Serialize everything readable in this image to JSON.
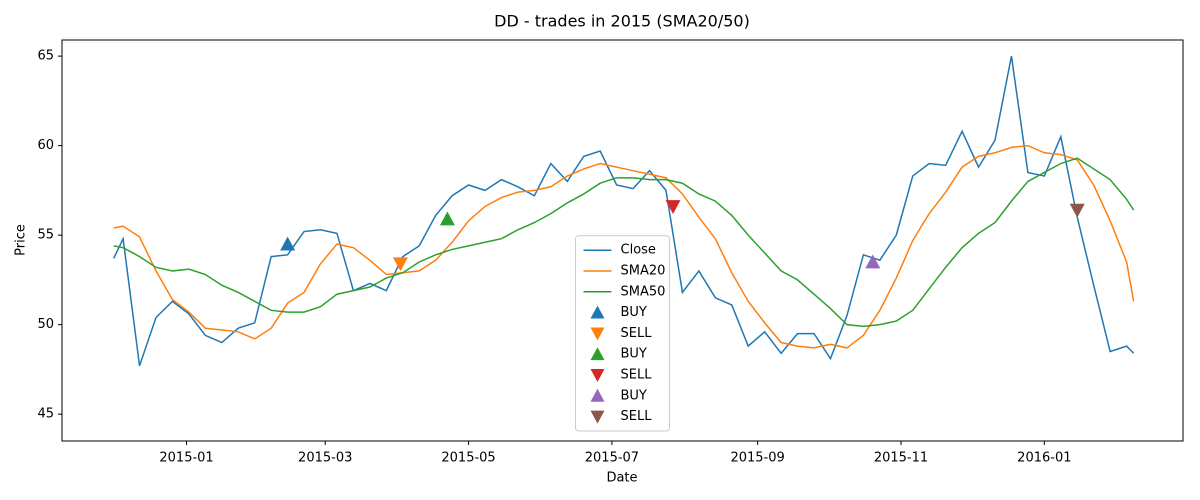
{
  "chart_data": {
    "type": "line",
    "title": "DD - trades in 2015 (SMA20/50)",
    "x_label": "Date",
    "y_label": "Price",
    "x": [
      "2014-12-01",
      "2014-12-05",
      "2014-12-12",
      "2014-12-19",
      "2014-12-26",
      "2015-01-02",
      "2015-01-09",
      "2015-01-16",
      "2015-01-23",
      "2015-01-30",
      "2015-02-06",
      "2015-02-13",
      "2015-02-20",
      "2015-02-27",
      "2015-03-06",
      "2015-03-13",
      "2015-03-20",
      "2015-03-27",
      "2015-04-03",
      "2015-04-10",
      "2015-04-17",
      "2015-04-24",
      "2015-05-01",
      "2015-05-08",
      "2015-05-15",
      "2015-05-22",
      "2015-05-29",
      "2015-06-05",
      "2015-06-12",
      "2015-06-19",
      "2015-06-26",
      "2015-07-03",
      "2015-07-10",
      "2015-07-17",
      "2015-07-24",
      "2015-07-31",
      "2015-08-07",
      "2015-08-14",
      "2015-08-21",
      "2015-08-28",
      "2015-09-04",
      "2015-09-11",
      "2015-09-18",
      "2015-09-25",
      "2015-10-02",
      "2015-10-09",
      "2015-10-16",
      "2015-10-23",
      "2015-10-30",
      "2015-11-06",
      "2015-11-13",
      "2015-11-20",
      "2015-11-27",
      "2015-12-04",
      "2015-12-11",
      "2015-12-18",
      "2015-12-25",
      "2016-01-01",
      "2016-01-08",
      "2016-01-15",
      "2016-01-22",
      "2016-01-29",
      "2016-02-05",
      "2016-02-08"
    ],
    "series": [
      {
        "name": "Close",
        "color": "#1f77b4",
        "values": [
          53.7,
          54.8,
          47.7,
          50.4,
          51.3,
          50.6,
          49.4,
          49.0,
          49.8,
          50.1,
          53.8,
          53.9,
          55.2,
          55.3,
          55.1,
          51.9,
          52.3,
          51.9,
          53.8,
          54.4,
          56.1,
          57.2,
          57.8,
          57.5,
          58.1,
          57.7,
          57.2,
          59.0,
          58.0,
          59.4,
          59.7,
          57.8,
          57.6,
          58.6,
          57.5,
          51.8,
          53.0,
          51.5,
          51.1,
          48.8,
          49.6,
          48.4,
          49.5,
          49.5,
          48.1,
          50.5,
          53.9,
          53.6,
          55.0,
          58.3,
          59.0,
          58.9,
          60.8,
          58.8,
          60.3,
          65.0,
          58.5,
          58.3,
          60.5,
          56.0,
          52.2,
          48.5,
          48.8,
          48.4
        ]
      },
      {
        "name": "SMA20",
        "color": "#ff7f0e",
        "values": [
          55.4,
          55.5,
          54.9,
          53.0,
          51.4,
          50.7,
          49.8,
          49.7,
          49.6,
          49.2,
          49.8,
          51.2,
          51.8,
          53.4,
          54.5,
          54.3,
          53.6,
          52.8,
          52.9,
          53.0,
          53.6,
          54.6,
          55.8,
          56.6,
          57.1,
          57.4,
          57.5,
          57.7,
          58.3,
          58.7,
          59.0,
          58.8,
          58.6,
          58.4,
          58.2,
          57.3,
          56.0,
          54.8,
          52.9,
          51.3,
          50.1,
          49.0,
          48.8,
          48.7,
          48.9,
          48.7,
          49.4,
          50.8,
          52.6,
          54.7,
          56.2,
          57.4,
          58.8,
          59.4,
          59.6,
          59.9,
          60.0,
          59.6,
          59.5,
          59.2,
          57.8,
          55.8,
          53.5,
          51.3
        ]
      },
      {
        "name": "SMA50",
        "color": "#2ca02c",
        "values": [
          54.4,
          54.3,
          53.8,
          53.2,
          53.0,
          53.1,
          52.8,
          52.2,
          51.8,
          51.3,
          50.8,
          50.7,
          50.7,
          51.0,
          51.7,
          51.9,
          52.1,
          52.6,
          52.9,
          53.5,
          53.9,
          54.2,
          54.4,
          54.6,
          54.8,
          55.3,
          55.7,
          56.2,
          56.8,
          57.3,
          57.9,
          58.2,
          58.2,
          58.1,
          58.1,
          57.9,
          57.3,
          56.9,
          56.1,
          55.0,
          54.0,
          53.0,
          52.5,
          51.7,
          50.9,
          50.0,
          49.9,
          50.0,
          50.2,
          50.8,
          52.0,
          53.2,
          54.3,
          55.1,
          55.7,
          56.9,
          58.0,
          58.5,
          59.0,
          59.3,
          58.7,
          58.1,
          57.0,
          56.4
        ]
      }
    ],
    "markers": [
      {
        "name": "BUY",
        "color": "#1f77b4",
        "marker": "triangle-up",
        "x": [
          "2015-02-13"
        ],
        "values": [
          54.5
        ]
      },
      {
        "name": "SELL",
        "color": "#ff7f0e",
        "marker": "triangle-down",
        "x": [
          "2015-04-02"
        ],
        "values": [
          53.4
        ]
      },
      {
        "name": "BUY",
        "color": "#2ca02c",
        "marker": "triangle-up",
        "x": [
          "2015-04-22"
        ],
        "values": [
          55.9
        ]
      },
      {
        "name": "SELL",
        "color": "#d62728",
        "marker": "triangle-down",
        "x": [
          "2015-07-27"
        ],
        "values": [
          56.6
        ]
      },
      {
        "name": "BUY",
        "color": "#9467bd",
        "marker": "triangle-up",
        "x": [
          "2015-10-20"
        ],
        "values": [
          53.5
        ]
      },
      {
        "name": "SELL",
        "color": "#8c564b",
        "marker": "triangle-down",
        "x": [
          "2016-01-15"
        ],
        "values": [
          56.4
        ]
      }
    ],
    "xlim": [
      "2014-11-09",
      "2016-02-29"
    ],
    "xticks": [
      "2015-01",
      "2015-03",
      "2015-05",
      "2015-07",
      "2015-09",
      "2015-11",
      "2016-01"
    ],
    "ylim": [
      43.5,
      65.9
    ],
    "yticks": [
      45,
      50,
      55,
      60,
      65
    ],
    "grid": false,
    "legend": "lower center"
  }
}
